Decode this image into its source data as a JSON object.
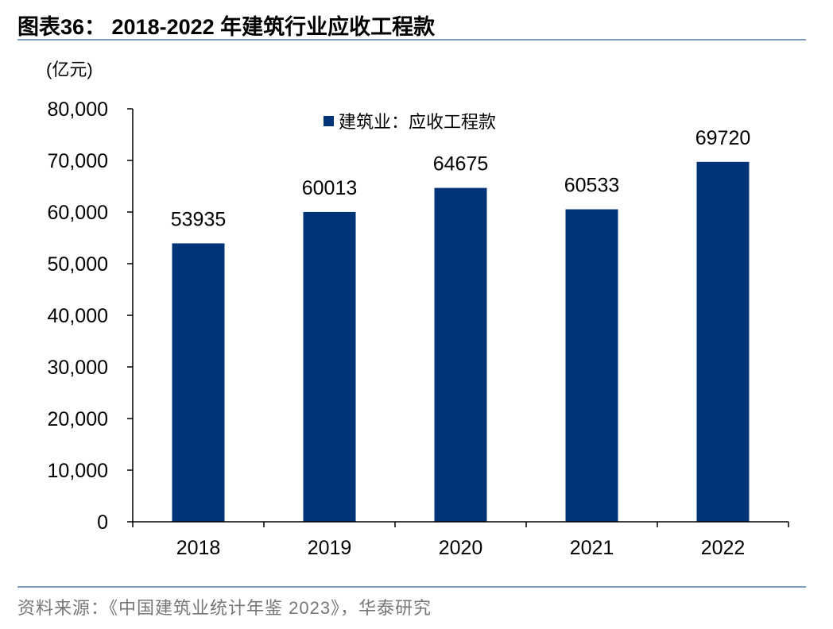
{
  "title": "图表36：  2018-2022 年建筑行业应收工程款",
  "source": "资料来源：《中国建筑业统计年鉴 2023》，华泰研究",
  "chart_data": {
    "type": "bar",
    "ylabel": "(亿元)",
    "categories": [
      "2018",
      "2019",
      "2020",
      "2021",
      "2022"
    ],
    "series": [
      {
        "name": "建筑业：应收工程款",
        "values": [
          53935,
          60013,
          64675,
          60533,
          69720
        ],
        "color": "#003478"
      }
    ],
    "data_labels": [
      "53935",
      "60013",
      "64675",
      "60533",
      "69720"
    ],
    "ylim": [
      0,
      80000
    ],
    "yticks": [
      0,
      10000,
      20000,
      30000,
      40000,
      50000,
      60000,
      70000,
      80000
    ],
    "ytick_labels": [
      "0",
      "10,000",
      "20,000",
      "30,000",
      "40,000",
      "50,000",
      "60,000",
      "70,000",
      "80,000"
    ],
    "grid": false,
    "legend": "top-center"
  }
}
